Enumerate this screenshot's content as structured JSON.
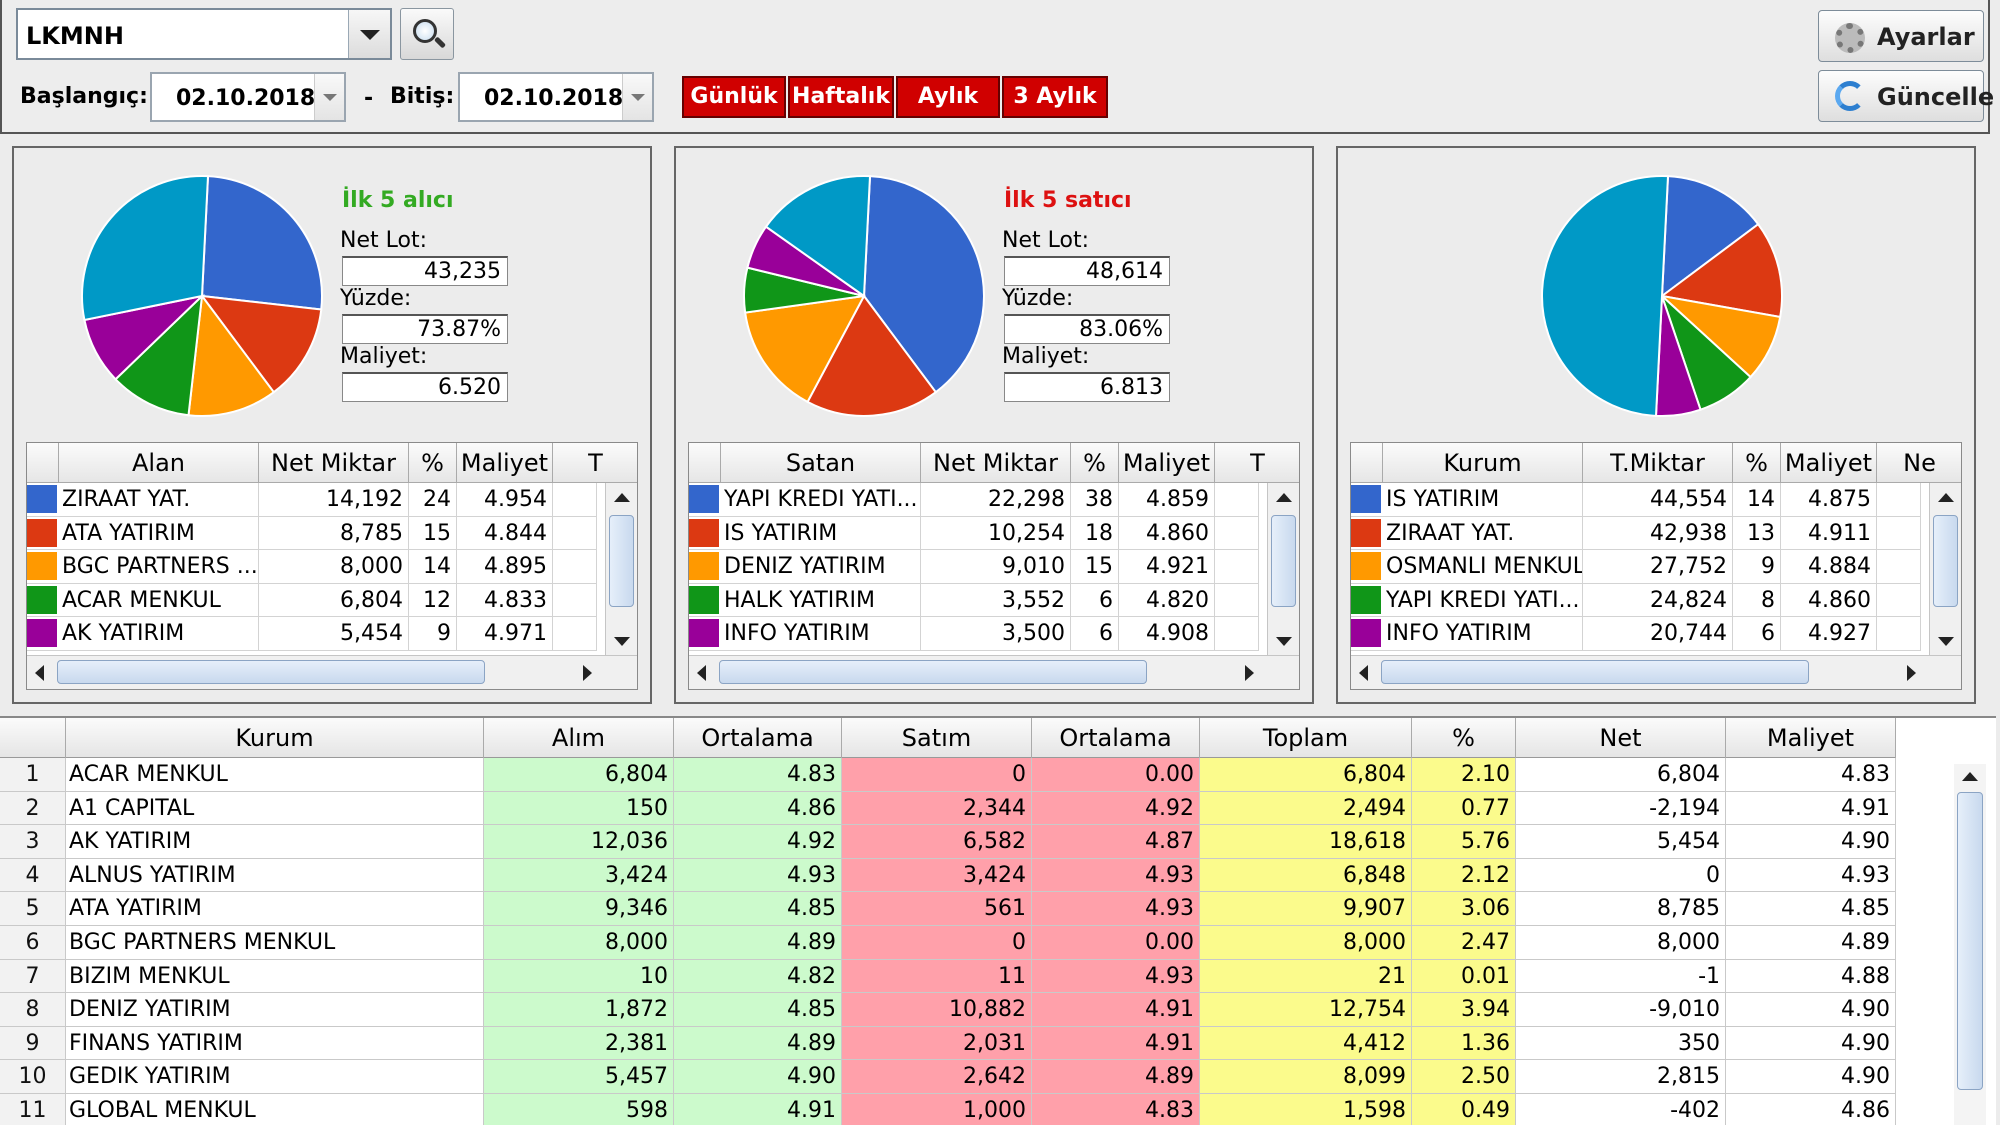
{
  "toolbar": {
    "symbol": "LKMNH",
    "start_label": "Başlangıç:",
    "start_date": "02.10.2018",
    "dash": "-",
    "end_label": "Bitiş:",
    "end_date": "02.10.2018",
    "periods": [
      "Günlük",
      "Haftalık",
      "Aylık",
      "3 Aylık"
    ],
    "period_color": "#d00000",
    "settings_label": "Ayarlar",
    "refresh_label": "Güncelle"
  },
  "series_colors": [
    "#3366cc",
    "#dc3912",
    "#ff9900",
    "#109618",
    "#990099",
    "#0099c6"
  ],
  "buyers": {
    "title": "İlk 5 alıcı",
    "title_color": "#33aa22",
    "net_lot_label": "Net Lot:",
    "net_lot": "43,235",
    "percent_label": "Yüzde:",
    "percent": "73.87%",
    "cost_label": "Maliyet:",
    "cost": "6.520",
    "columns": [
      "Alan",
      "Net Miktar",
      "%",
      "Maliyet",
      "T"
    ],
    "rows": [
      {
        "name": "ZIRAAT YAT.",
        "qty": "14,192",
        "pct": "24",
        "cost": "4.954"
      },
      {
        "name": "ATA YATIRIM",
        "qty": "8,785",
        "pct": "15",
        "cost": "4.844"
      },
      {
        "name": "BGC PARTNERS ...",
        "qty": "8,000",
        "pct": "14",
        "cost": "4.895"
      },
      {
        "name": "ACAR MENKUL",
        "qty": "6,804",
        "pct": "12",
        "cost": "4.833"
      },
      {
        "name": "AK YATIRIM",
        "qty": "5,454",
        "pct": "9",
        "cost": "4.971"
      }
    ],
    "pie": [
      26,
      13,
      12,
      11,
      9,
      29
    ]
  },
  "sellers": {
    "title": "İlk 5 satıcı",
    "title_color": "#dd1111",
    "net_lot_label": "Net Lot:",
    "net_lot": "48,614",
    "percent_label": "Yüzde:",
    "percent": "83.06%",
    "cost_label": "Maliyet:",
    "cost": "6.813",
    "columns": [
      "Satan",
      "Net Miktar",
      "%",
      "Maliyet",
      "T"
    ],
    "rows": [
      {
        "name": "YAPI KREDI YATI...",
        "qty": "22,298",
        "pct": "38",
        "cost": "4.859"
      },
      {
        "name": "IS YATIRIM",
        "qty": "10,254",
        "pct": "18",
        "cost": "4.860"
      },
      {
        "name": "DENIZ YATIRIM",
        "qty": "9,010",
        "pct": "15",
        "cost": "4.921"
      },
      {
        "name": "HALK YATIRIM",
        "qty": "3,552",
        "pct": "6",
        "cost": "4.820"
      },
      {
        "name": "INFO YATIRIM",
        "qty": "3,500",
        "pct": "6",
        "cost": "4.908"
      }
    ],
    "pie": [
      39,
      18,
      15,
      6,
      6,
      16
    ]
  },
  "totals": {
    "columns": [
      "Kurum",
      "T.Miktar",
      "%",
      "Maliyet",
      "Ne"
    ],
    "rows": [
      {
        "name": "IS YATIRIM",
        "qty": "44,554",
        "pct": "14",
        "cost": "4.875"
      },
      {
        "name": "ZIRAAT YAT.",
        "qty": "42,938",
        "pct": "13",
        "cost": "4.911"
      },
      {
        "name": "OSMANLI MENKUL",
        "qty": "27,752",
        "pct": "9",
        "cost": "4.884"
      },
      {
        "name": "YAPI KREDI YATI...",
        "qty": "24,824",
        "pct": "8",
        "cost": "4.860"
      },
      {
        "name": "INFO YATIRIM",
        "qty": "20,744",
        "pct": "6",
        "cost": "4.927"
      }
    ],
    "pie": [
      14,
      13,
      9,
      8,
      6,
      50
    ]
  },
  "main": {
    "columns": [
      "",
      "Kurum",
      "Alım",
      "Ortalama",
      "Satım",
      "Ortalama",
      "Toplam",
      "%",
      "Net",
      "Maliyet"
    ],
    "rows": [
      [
        "1",
        "ACAR MENKUL",
        "6,804",
        "4.83",
        "0",
        "0.00",
        "6,804",
        "2.10",
        "6,804",
        "4.83"
      ],
      [
        "2",
        "A1 CAPITAL",
        "150",
        "4.86",
        "2,344",
        "4.92",
        "2,494",
        "0.77",
        "-2,194",
        "4.91"
      ],
      [
        "3",
        "AK YATIRIM",
        "12,036",
        "4.92",
        "6,582",
        "4.87",
        "18,618",
        "5.76",
        "5,454",
        "4.90"
      ],
      [
        "4",
        "ALNUS YATIRIM",
        "3,424",
        "4.93",
        "3,424",
        "4.93",
        "6,848",
        "2.12",
        "0",
        "4.93"
      ],
      [
        "5",
        "ATA YATIRIM",
        "9,346",
        "4.85",
        "561",
        "4.93",
        "9,907",
        "3.06",
        "8,785",
        "4.85"
      ],
      [
        "6",
        "BGC PARTNERS MENKUL",
        "8,000",
        "4.89",
        "0",
        "0.00",
        "8,000",
        "2.47",
        "8,000",
        "4.89"
      ],
      [
        "7",
        "BIZIM MENKUL",
        "10",
        "4.82",
        "11",
        "4.93",
        "21",
        "0.01",
        "-1",
        "4.88"
      ],
      [
        "8",
        "DENIZ YATIRIM",
        "1,872",
        "4.85",
        "10,882",
        "4.91",
        "12,754",
        "3.94",
        "-9,010",
        "4.90"
      ],
      [
        "9",
        "FINANS YATIRIM",
        "2,381",
        "4.89",
        "2,031",
        "4.91",
        "4,412",
        "1.36",
        "350",
        "4.90"
      ],
      [
        "10",
        "GEDIK YATIRIM",
        "5,457",
        "4.90",
        "2,642",
        "4.89",
        "8,099",
        "2.50",
        "2,815",
        "4.90"
      ],
      [
        "11",
        "GLOBAL MENKUL",
        "598",
        "4.91",
        "1,000",
        "4.83",
        "1,598",
        "0.49",
        "-402",
        "4.86"
      ]
    ]
  }
}
